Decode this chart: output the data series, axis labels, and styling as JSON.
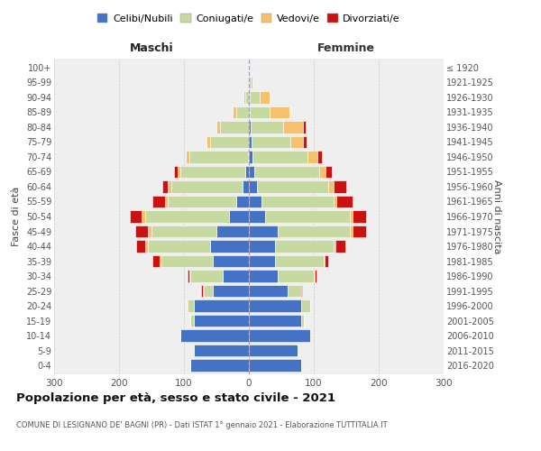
{
  "age_groups": [
    "0-4",
    "5-9",
    "10-14",
    "15-19",
    "20-24",
    "25-29",
    "30-34",
    "35-39",
    "40-44",
    "45-49",
    "50-54",
    "55-59",
    "60-64",
    "65-69",
    "70-74",
    "75-79",
    "80-84",
    "85-89",
    "90-94",
    "95-99",
    "100+"
  ],
  "birth_years": [
    "2016-2020",
    "2011-2015",
    "2006-2010",
    "2001-2005",
    "1996-2000",
    "1991-1995",
    "1986-1990",
    "1981-1985",
    "1976-1980",
    "1971-1975",
    "1966-1970",
    "1961-1965",
    "1956-1960",
    "1951-1955",
    "1946-1950",
    "1941-1945",
    "1936-1940",
    "1931-1935",
    "1926-1930",
    "1921-1925",
    "≤ 1920"
  ],
  "male": {
    "celibi": [
      90,
      85,
      105,
      85,
      85,
      55,
      40,
      55,
      60,
      50,
      30,
      20,
      10,
      5,
      2,
      0,
      0,
      0,
      0,
      0,
      0
    ],
    "coniugati": [
      0,
      0,
      0,
      5,
      10,
      15,
      50,
      80,
      95,
      100,
      130,
      105,
      110,
      100,
      90,
      60,
      45,
      20,
      5,
      0,
      0
    ],
    "vedovi": [
      0,
      0,
      0,
      0,
      1,
      1,
      2,
      3,
      5,
      5,
      5,
      4,
      5,
      5,
      5,
      5,
      5,
      5,
      3,
      0,
      0
    ],
    "divorziati": [
      0,
      0,
      0,
      0,
      0,
      2,
      3,
      10,
      14,
      20,
      18,
      20,
      8,
      5,
      0,
      0,
      0,
      0,
      0,
      0,
      0
    ]
  },
  "female": {
    "nubili": [
      80,
      75,
      95,
      80,
      80,
      60,
      45,
      40,
      40,
      45,
      25,
      20,
      12,
      8,
      5,
      4,
      3,
      2,
      2,
      0,
      0
    ],
    "coniugate": [
      0,
      0,
      0,
      5,
      15,
      20,
      55,
      75,
      90,
      110,
      130,
      110,
      110,
      100,
      85,
      60,
      50,
      30,
      15,
      3,
      0
    ],
    "vedove": [
      0,
      0,
      0,
      0,
      0,
      1,
      1,
      2,
      3,
      5,
      5,
      5,
      8,
      10,
      15,
      20,
      30,
      30,
      15,
      2,
      0
    ],
    "divorziate": [
      0,
      0,
      0,
      0,
      0,
      1,
      3,
      5,
      15,
      20,
      20,
      25,
      20,
      10,
      8,
      5,
      5,
      0,
      0,
      0,
      0
    ]
  },
  "colors": {
    "celibi_nubili": "#4472c4",
    "coniugati": "#c5d9a0",
    "vedovi": "#f5c26b",
    "divorziati": "#cc1111"
  },
  "xlim": 300,
  "title": "Popolazione per età, sesso e stato civile - 2021",
  "subtitle": "COMUNE DI LESIGNANO DE' BAGNI (PR) - Dati ISTAT 1° gennaio 2021 - Elaborazione TUTTITALIA.IT",
  "xlabel_left": "Maschi",
  "xlabel_right": "Femmine",
  "ylabel_left": "Fasce di età",
  "ylabel_right": "Anni di nascita",
  "legend_labels": [
    "Celibi/Nubili",
    "Coniugati/e",
    "Vedovi/e",
    "Divorziati/e"
  ],
  "bg_color": "#ffffff",
  "plot_bg": "#efefef"
}
